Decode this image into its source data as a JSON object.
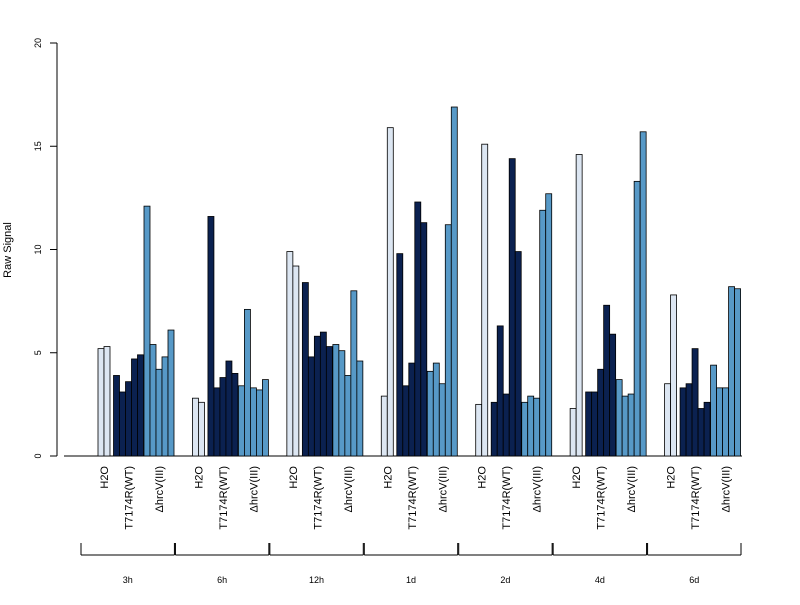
{
  "chart_data": {
    "type": "bar",
    "ylabel": "Raw Signal",
    "ylim": [
      0,
      20
    ],
    "yticks": [
      0,
      5,
      10,
      15,
      20
    ],
    "timepoints": [
      "3h",
      "6h",
      "12h",
      "1d",
      "2d",
      "4d",
      "6d"
    ],
    "group_labels": [
      "H2O",
      "T7174R(WT)",
      "ΔhrcV(III)"
    ],
    "colors": [
      "#dce6f2",
      "#0b2150",
      "#5799c7"
    ],
    "groups": [
      [
        [
          5.2,
          5.3
        ],
        [
          3.9,
          3.1,
          3.6,
          4.7,
          4.9
        ],
        [
          12.1,
          5.4,
          4.2,
          4.8,
          6.1
        ]
      ],
      [
        [
          2.8,
          2.6
        ],
        [
          11.6,
          3.3,
          3.8,
          4.6,
          4.0
        ],
        [
          3.4,
          7.1,
          3.3,
          3.2,
          3.7
        ]
      ],
      [
        [
          9.9,
          9.2
        ],
        [
          8.4,
          4.8,
          5.8,
          6.0,
          5.3
        ],
        [
          5.4,
          5.1,
          3.9,
          8.0,
          4.6
        ]
      ],
      [
        [
          2.9,
          15.9
        ],
        [
          9.8,
          3.4,
          4.5,
          12.3,
          11.3
        ],
        [
          4.1,
          4.5,
          3.5,
          11.2,
          16.9
        ]
      ],
      [
        [
          2.5,
          15.1
        ],
        [
          2.6,
          6.3,
          3.0,
          14.4,
          9.9
        ],
        [
          2.6,
          2.9,
          2.8,
          11.9,
          12.7
        ]
      ],
      [
        [
          2.3,
          14.6
        ],
        [
          3.1,
          3.1,
          4.2,
          7.3,
          5.9
        ],
        [
          3.7,
          2.9,
          3.0,
          13.3,
          15.7
        ]
      ],
      [
        [
          3.5,
          7.8
        ],
        [
          3.3,
          3.5,
          5.2,
          2.3,
          2.6
        ],
        [
          4.4,
          3.3,
          3.3,
          8.2,
          8.1
        ]
      ]
    ]
  }
}
